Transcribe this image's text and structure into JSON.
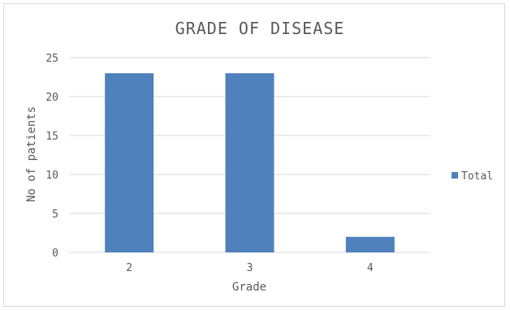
{
  "chart_data": {
    "type": "bar",
    "title": "GRADE OF DISEASE",
    "xlabel": "Grade",
    "ylabel": "No of patients",
    "categories": [
      "2",
      "3",
      "4"
    ],
    "series": [
      {
        "name": "Total",
        "values": [
          23,
          23,
          2
        ]
      }
    ],
    "ylim": [
      0,
      25
    ],
    "yticks": [
      0,
      5,
      10,
      15,
      20,
      25
    ],
    "grid": true,
    "legend_position": "right",
    "colors": {
      "bar": "#4f81bd",
      "grid": "#d9d9d9",
      "text": "#595959"
    }
  }
}
